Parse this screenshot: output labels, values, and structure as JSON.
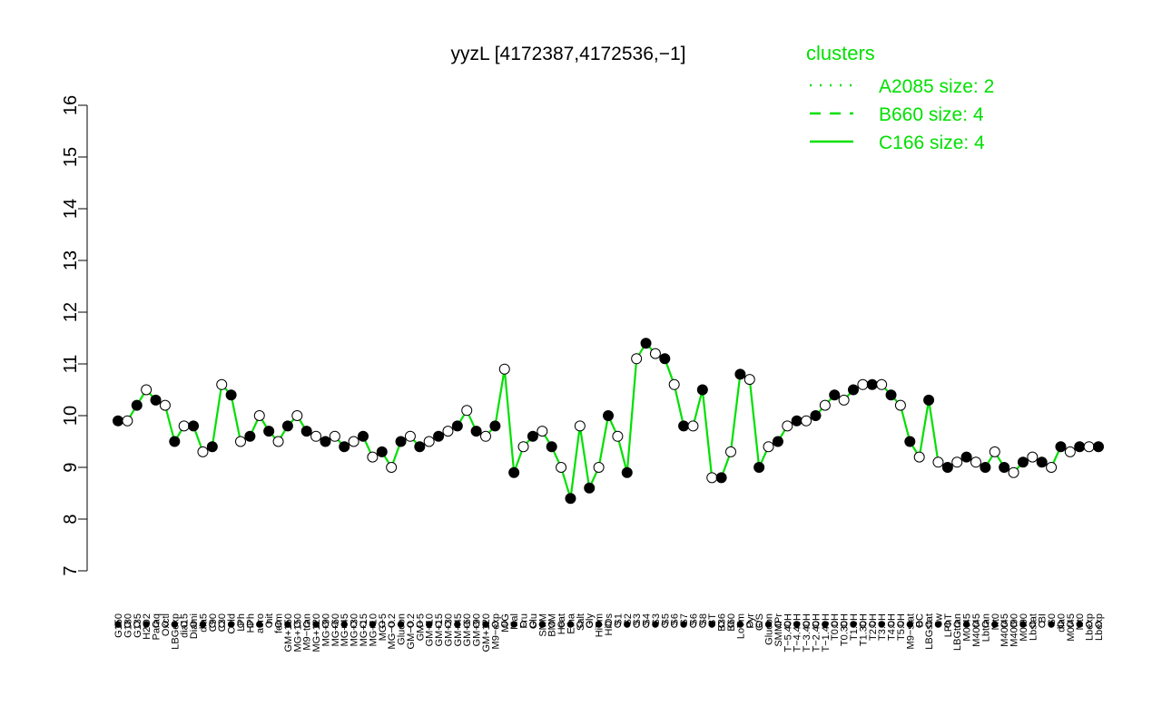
{
  "chart_data": {
    "type": "line",
    "title": "yyzL [4172387,4172536,−1]",
    "xlabel": "",
    "ylabel": "",
    "ylim": [
      7,
      16
    ],
    "yticks": [
      7,
      8,
      9,
      10,
      11,
      12,
      13,
      14,
      15,
      16
    ],
    "grid": false,
    "legend_position": "top-right",
    "legend_title": "clusters",
    "legend": [
      {
        "label": "A2085 size: 2",
        "style": "dotted"
      },
      {
        "label": "B660 size: 4",
        "style": "dashed"
      },
      {
        "label": "C166 size: 4",
        "style": "solid"
      }
    ],
    "colors": {
      "line": "#00e000",
      "point_fill_a": "#ffffff",
      "point_fill_b": "#000000",
      "axis": "#000000"
    },
    "x_tick_labels": [
      "G150",
      "G180",
      "G135",
      "H2O2",
      "Paraq",
      "Oxctl",
      "LBGexp",
      "dia15",
      "Diami",
      "dia5",
      "C90",
      "C30",
      "Cold",
      "LPh",
      "HPh",
      "aero",
      "nit",
      "ferm",
      "GM+150",
      "MG+150",
      "M9−tran",
      "MG+120",
      "MG+90",
      "MG+60",
      "MG+45",
      "MG+30",
      "MG+15",
      "MG+10",
      "MG+5",
      "MG−0.2",
      "Glucon",
      "GM−0.2",
      "GM+5",
      "GM+10",
      "GM+15",
      "GM+30",
      "GM+45",
      "GM+60",
      "GM+90",
      "GM+120",
      "M9−exp",
      "M/G",
      "Mal",
      "Fru",
      "Glu",
      "SMM",
      "BMM",
      "Heat",
      "Etha",
      "Salt",
      "Gly",
      "HiTm",
      "HiOs",
      "S1",
      "S2",
      "S3",
      "S4",
      "S3",
      "S5",
      "S6",
      "S7",
      "S6",
      "S8",
      "BT",
      "B36",
      "B60",
      "LoTm",
      "Pyr",
      "G/S",
      "Glucon",
      "SMMPr",
      "T−5.40H",
      "T−4.40H",
      "T−3.40H",
      "T−2.40H",
      "T−1.40H",
      "T0.0H",
      "T0.30H",
      "T1.0H",
      "T1.30H",
      "T2.0H",
      "T3.0H",
      "T4.0H",
      "T5.0H",
      "M9−stat",
      "BC",
      "LBGstat",
      "Sw",
      "LPhT",
      "LBGtran",
      "M0t45",
      "M40t45",
      "Lbtran",
      "Mt0",
      "M40t45",
      "M40t90",
      "M0t90",
      "Lbstat",
      "BI",
      "S0",
      "dia0",
      "M0t45",
      "Mt0",
      "Lbexp",
      "Lbexp"
    ],
    "series": [
      {
        "values": [
          9.9,
          9.9,
          10.2,
          10.5,
          10.3,
          10.2,
          9.5,
          9.8,
          9.8,
          9.3,
          9.4,
          10.6,
          10.4,
          9.5,
          9.6,
          10.0,
          9.7,
          9.5,
          9.8,
          10.0,
          9.7,
          9.6,
          9.5,
          9.6,
          9.4,
          9.5,
          9.6,
          9.2,
          9.3,
          9.0,
          9.5,
          9.6,
          9.4,
          9.5,
          9.6,
          9.7,
          9.8,
          10.1,
          9.7,
          9.6,
          9.8,
          10.9,
          8.9,
          9.4,
          9.6,
          9.7,
          9.4,
          9.0,
          8.4,
          9.8,
          8.6,
          9.0,
          10.0,
          9.6,
          8.9,
          11.1,
          11.4,
          11.2,
          11.1,
          10.6,
          9.8,
          9.8,
          10.5,
          8.8,
          8.8,
          9.3,
          10.8,
          10.7,
          9.0,
          9.4,
          9.5,
          9.8,
          9.9,
          9.9,
          10.0,
          10.2,
          10.4,
          10.3,
          10.5,
          10.6,
          10.6,
          10.6,
          10.4,
          10.2,
          9.5,
          9.2,
          10.3,
          9.1,
          9.0,
          9.1,
          9.2,
          9.1,
          9.0,
          9.3,
          9.0,
          8.9,
          9.1,
          9.2,
          9.1,
          9.0,
          9.4,
          9.3,
          9.4,
          9.4,
          9.4
        ]
      }
    ]
  }
}
